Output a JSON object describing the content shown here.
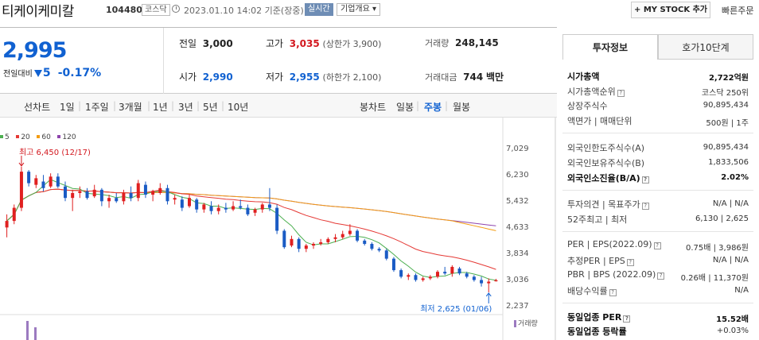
{
  "header": {
    "stock_name": "티케이케미칼",
    "stock_code": "104480",
    "market": "코스닥",
    "datetime": "2023.01.10 14:02 기준(장중)",
    "live_badge": "실시간",
    "company_overview": "기업개요",
    "mystock_button": "+ MY STOCK 추가",
    "quick_order": "빠른주문"
  },
  "quote": {
    "price": "2,995",
    "change_label": "전일대비",
    "change_value": "5",
    "change_pct": "-0.17%",
    "prev_close_label": "전일",
    "prev_close": "3,000",
    "open_label": "시가",
    "open": "2,990",
    "high_label": "고가",
    "high": "3,035",
    "upper_limit": "(상한가 3,900)",
    "low_label": "저가",
    "low": "2,955",
    "lower_limit": "(하한가 2,100)",
    "volume_label": "거래량",
    "volume": "248,145",
    "amount_label": "거래대금",
    "amount": "744",
    "amount_unit": "백만"
  },
  "periods": {
    "line_label": "선차트",
    "items": [
      "1일",
      "1주일",
      "3개월",
      "1년",
      "3년",
      "5년",
      "10년"
    ],
    "candle_label": "봉차트",
    "candle_items": [
      "일봉",
      "주봉",
      "월봉"
    ],
    "active_candle": "주봉"
  },
  "legend": [
    {
      "label": "5",
      "color": "#4caf50"
    },
    {
      "label": "20",
      "color": "#e53935"
    },
    {
      "label": "60",
      "color": "#f39c12"
    },
    {
      "label": "120",
      "color": "#8e44ad"
    }
  ],
  "chart_annotations": {
    "high_label": "최고 6,450 (12/17)",
    "low_label": "최저 2,625 (01/06)",
    "volume_axis_label": "거래량"
  },
  "chart_data": {
    "type": "candlestick",
    "y_ticks": [
      "7,029",
      "6,230",
      "5,432",
      "4,633",
      "3,834",
      "3,036",
      "2,237"
    ],
    "ylim": [
      2237,
      7029
    ],
    "candles": [
      [
        4600,
        5000,
        4300,
        4800
      ],
      [
        4800,
        5300,
        4700,
        5200
      ],
      [
        5200,
        6450,
        5100,
        6300
      ],
      [
        6300,
        6350,
        5850,
        5950
      ],
      [
        5900,
        6200,
        5800,
        6100
      ],
      [
        6000,
        6200,
        5700,
        5800
      ],
      [
        5850,
        6250,
        5800,
        6150
      ],
      [
        6150,
        6250,
        5800,
        5850
      ],
      [
        5850,
        6000,
        5400,
        5500
      ],
      [
        5500,
        5750,
        5100,
        5650
      ],
      [
        5650,
        5850,
        5500,
        5700
      ],
      [
        5700,
        5800,
        5450,
        5500
      ],
      [
        5550,
        5900,
        5500,
        5750
      ],
      [
        5750,
        5800,
        5250,
        5400
      ],
      [
        5400,
        5600,
        5200,
        5500
      ],
      [
        5500,
        5650,
        5350,
        5400
      ],
      [
        5400,
        5750,
        5300,
        5650
      ],
      [
        5650,
        5850,
        5400,
        5500
      ],
      [
        5500,
        6050,
        5400,
        5950
      ],
      [
        5900,
        6000,
        5500,
        5600
      ],
      [
        5600,
        5750,
        5400,
        5700
      ],
      [
        5650,
        5950,
        5600,
        5800
      ],
      [
        5800,
        5900,
        5300,
        5400
      ],
      [
        5450,
        5600,
        5300,
        5500
      ],
      [
        5450,
        5550,
        5100,
        5200
      ],
      [
        5250,
        5600,
        5200,
        5500
      ],
      [
        5450,
        5500,
        5050,
        5150
      ],
      [
        5150,
        5350,
        5050,
        5300
      ],
      [
        5250,
        5400,
        5000,
        5100
      ],
      [
        5100,
        5300,
        5000,
        5200
      ],
      [
        5200,
        5350,
        5050,
        5150
      ],
      [
        5150,
        5400,
        5100,
        5250
      ],
      [
        5250,
        5450,
        5150,
        5200
      ],
      [
        5200,
        5300,
        4950,
        5000
      ],
      [
        5050,
        5200,
        4950,
        5150
      ],
      [
        5150,
        5350,
        5050,
        5300
      ],
      [
        5300,
        5800,
        5100,
        5200
      ],
      [
        5200,
        5300,
        4400,
        4500
      ],
      [
        4500,
        4550,
        3950,
        4000
      ],
      [
        4050,
        4350,
        4000,
        4250
      ],
      [
        4250,
        4300,
        3850,
        3950
      ],
      [
        3950,
        4100,
        3850,
        4050
      ],
      [
        4050,
        4150,
        3950,
        4100
      ],
      [
        4100,
        4250,
        4050,
        4150
      ],
      [
        4150,
        4300,
        4100,
        4250
      ],
      [
        4250,
        4400,
        4150,
        4300
      ],
      [
        4300,
        4500,
        4250,
        4400
      ],
      [
        4400,
        4700,
        4350,
        4500
      ],
      [
        4500,
        4550,
        4150,
        4200
      ],
      [
        4200,
        4250,
        4050,
        4100
      ],
      [
        4100,
        4150,
        3900,
        3950
      ],
      [
        3950,
        4000,
        3850,
        3900
      ],
      [
        3900,
        3950,
        3600,
        3650
      ],
      [
        3650,
        3700,
        3250,
        3300
      ],
      [
        3300,
        3350,
        3050,
        3100
      ],
      [
        3100,
        3200,
        3000,
        3150
      ],
      [
        3150,
        3200,
        2950,
        3000
      ],
      [
        3000,
        3100,
        2950,
        3050
      ],
      [
        3050,
        3150,
        3000,
        3100
      ],
      [
        3100,
        3300,
        3050,
        3250
      ],
      [
        3250,
        3400,
        3150,
        3200
      ],
      [
        3200,
        3450,
        3100,
        3400
      ],
      [
        3350,
        3400,
        3150,
        3200
      ],
      [
        3200,
        3250,
        3050,
        3100
      ],
      [
        3100,
        3150,
        2950,
        3000
      ],
      [
        3000,
        3100,
        2800,
        2900
      ],
      [
        2900,
        3050,
        2625,
        2950
      ],
      [
        2960,
        3035,
        2955,
        2995
      ]
    ]
  },
  "tabs": [
    "투자정보",
    "호가10단계"
  ],
  "invest_info": {
    "market_cap_label": "시가총액",
    "market_cap": "2,722억원",
    "market_cap_rank_label": "시가총액순위",
    "market_cap_rank": "코스닥 250위",
    "listed_shares_label": "상장주식수",
    "listed_shares": "90,895,434",
    "face_value_label": "액면가 | 매매단위",
    "face_value": "500원 | 1주",
    "foreign_limit_label": "외국인한도주식수(A)",
    "foreign_limit": "90,895,434",
    "foreign_hold_label": "외국인보유주식수(B)",
    "foreign_hold": "1,833,506",
    "foreign_ratio_label": "외국인소진율(B/A)",
    "foreign_ratio": "2.02%",
    "opinion_label": "투자의견 | 목표주가",
    "opinion": "N/A | N/A",
    "week52_label": "52주최고 | 최저",
    "week52": "6,130 | 2,625",
    "per_label": "PER | EPS(2022.09)",
    "per": "0.75배 | 3,986원",
    "est_per_label": "추정PER | EPS",
    "est_per": "N/A | N/A",
    "pbr_label": "PBR | BPS (2022.09)",
    "pbr": "0.26배 | 11,370원",
    "div_label": "배당수익률",
    "div": "N/A",
    "industry_per_label": "동일업종 PER",
    "industry_per": "15.52배",
    "industry_rate_label": "동일업종 등락률",
    "industry_rate": "+0.03%"
  }
}
